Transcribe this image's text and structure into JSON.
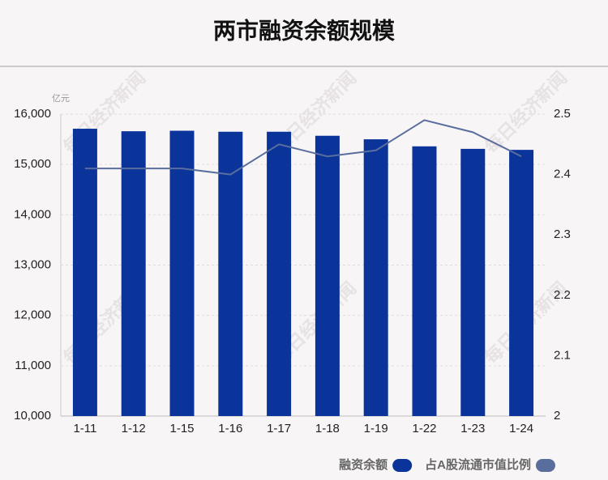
{
  "chart_data": {
    "type": "bar",
    "title": "两市融资余额规模",
    "y_unit": "亿元",
    "watermark": "每日经济新闻",
    "categories": [
      "1-11",
      "1-12",
      "1-15",
      "1-16",
      "1-17",
      "1-18",
      "1-19",
      "1-22",
      "1-23",
      "1-24"
    ],
    "series": [
      {
        "name": "融资余额",
        "type": "bar",
        "color": "#0b349b",
        "values": [
          15710,
          15660,
          15670,
          15650,
          15650,
          15570,
          15500,
          15360,
          15310,
          15290
        ]
      },
      {
        "name": "占A股流通市值比例",
        "type": "line",
        "axis": "y2",
        "color": "#5a6e9e",
        "values": [
          2.41,
          2.41,
          2.41,
          2.4,
          2.45,
          2.43,
          2.44,
          2.49,
          2.47,
          2.43
        ]
      }
    ],
    "ylim": [
      10000,
      16000
    ],
    "yticks": [
      {
        "value": 10000,
        "label": "10,000"
      },
      {
        "value": 11000,
        "label": "11,000"
      },
      {
        "value": 12000,
        "label": "12,000"
      },
      {
        "value": 13000,
        "label": "13,000"
      },
      {
        "value": 14000,
        "label": "14,000"
      },
      {
        "value": 15000,
        "label": "15,000"
      },
      {
        "value": 16000,
        "label": "16,000"
      }
    ],
    "y2lim": [
      2,
      2.5
    ],
    "y2ticks": [
      2,
      2.1,
      2.2,
      2.3,
      2.4,
      2.5
    ],
    "grid": true,
    "legend": "bottom-right"
  }
}
